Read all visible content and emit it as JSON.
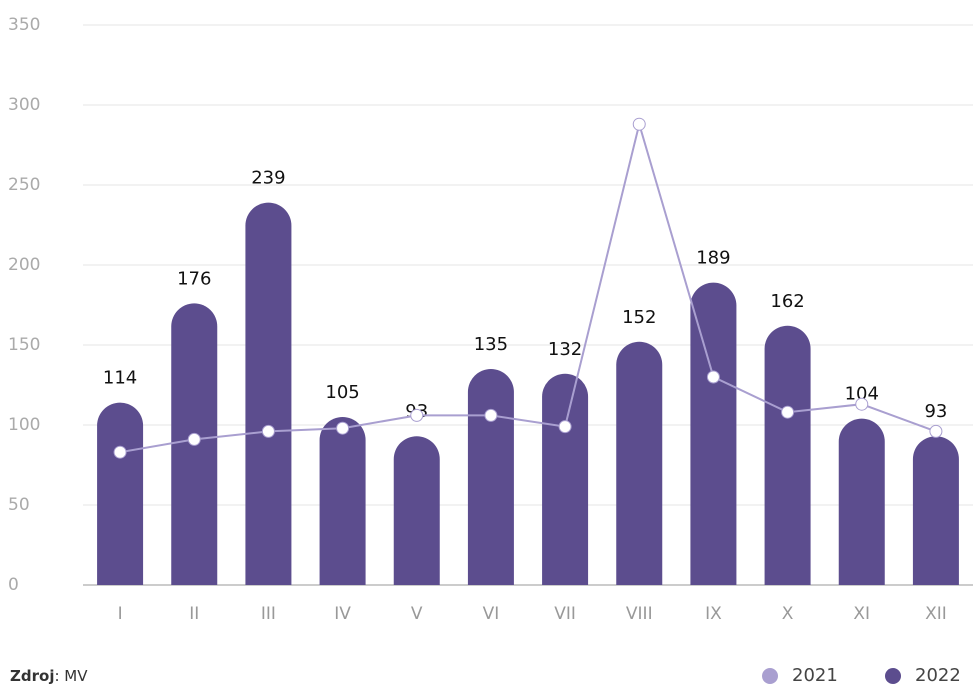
{
  "chart_data": {
    "type": "bar",
    "categories": [
      "I",
      "II",
      "III",
      "IV",
      "V",
      "VI",
      "VII",
      "VIII",
      "IX",
      "X",
      "XI",
      "XII"
    ],
    "series": [
      {
        "name": "2021",
        "color": "#a99fd0",
        "kind": "line",
        "values": [
          83,
          91,
          96,
          98,
          106,
          106,
          99,
          288,
          130,
          108,
          113,
          96
        ]
      },
      {
        "name": "2022",
        "color": "#5c4d8e",
        "kind": "bar",
        "values": [
          114,
          176,
          239,
          105,
          93,
          135,
          132,
          152,
          189,
          162,
          104,
          93
        ]
      }
    ],
    "ylim": [
      0,
      350
    ],
    "yticks": [
      0,
      50,
      100,
      150,
      200,
      250,
      300,
      350
    ],
    "grid": true,
    "legend": "bottom-right",
    "source_label": "Zdroj",
    "source_value": ": MV"
  }
}
